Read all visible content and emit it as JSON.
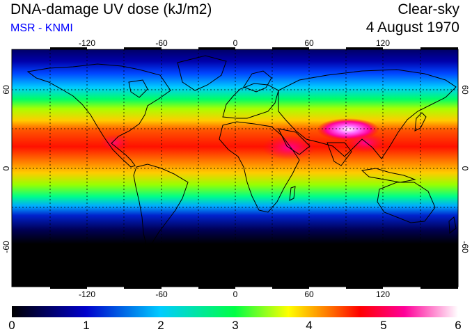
{
  "header": {
    "title": "DNA-damage UV dose (kJ/m2)",
    "credit": "MSR - KNMI",
    "sky": "Clear-sky",
    "date": "4 August 1970"
  },
  "map": {
    "lon_ticks": [
      "-120",
      "-60",
      "0",
      "60",
      "120"
    ],
    "lat_ticks": [
      "60",
      "0",
      "-60"
    ],
    "extent": {
      "lon": [
        -180,
        180
      ],
      "lat": [
        -90,
        90
      ]
    },
    "gridlines": true
  },
  "colorbar": {
    "ticks": [
      "0",
      "1",
      "2",
      "3",
      "4",
      "5",
      "6"
    ],
    "min": 0,
    "max": 6,
    "colors": [
      "#000000",
      "#0000cc",
      "#00ccff",
      "#00ff44",
      "#ffff00",
      "#ff0000",
      "#ff0099",
      "#ffffff"
    ]
  }
}
